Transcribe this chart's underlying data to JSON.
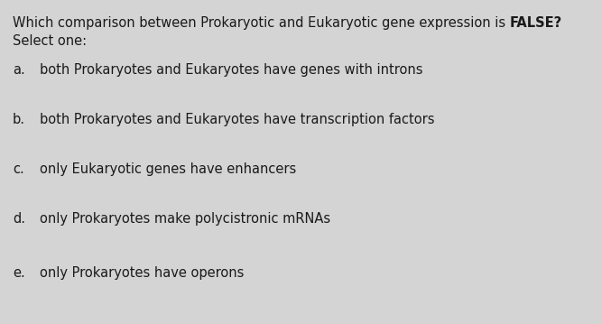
{
  "title_line1": "Which comparison between Prokaryotic and Eukaryotic gene expression is ",
  "title_bold": "FALSE?",
  "subtitle": "Select one:",
  "options": [
    {
      "label": "a.",
      "text": "both Prokaryotes and Eukaryotes have genes with introns"
    },
    {
      "label": "b.",
      "text": "both Prokaryotes and Eukaryotes have transcription factors"
    },
    {
      "label": "c.",
      "text": "only Eukaryotic genes have enhancers"
    },
    {
      "label": "d.",
      "text": "only Prokaryotes make polycistronic mRNAs"
    },
    {
      "label": "e.",
      "text": "only Prokaryotes have operons"
    }
  ],
  "bg_color": "#d4d4d4",
  "text_color": "#1a1a1a",
  "title_fontsize": 10.5,
  "subtitle_fontsize": 10.5,
  "option_fontsize": 10.5
}
